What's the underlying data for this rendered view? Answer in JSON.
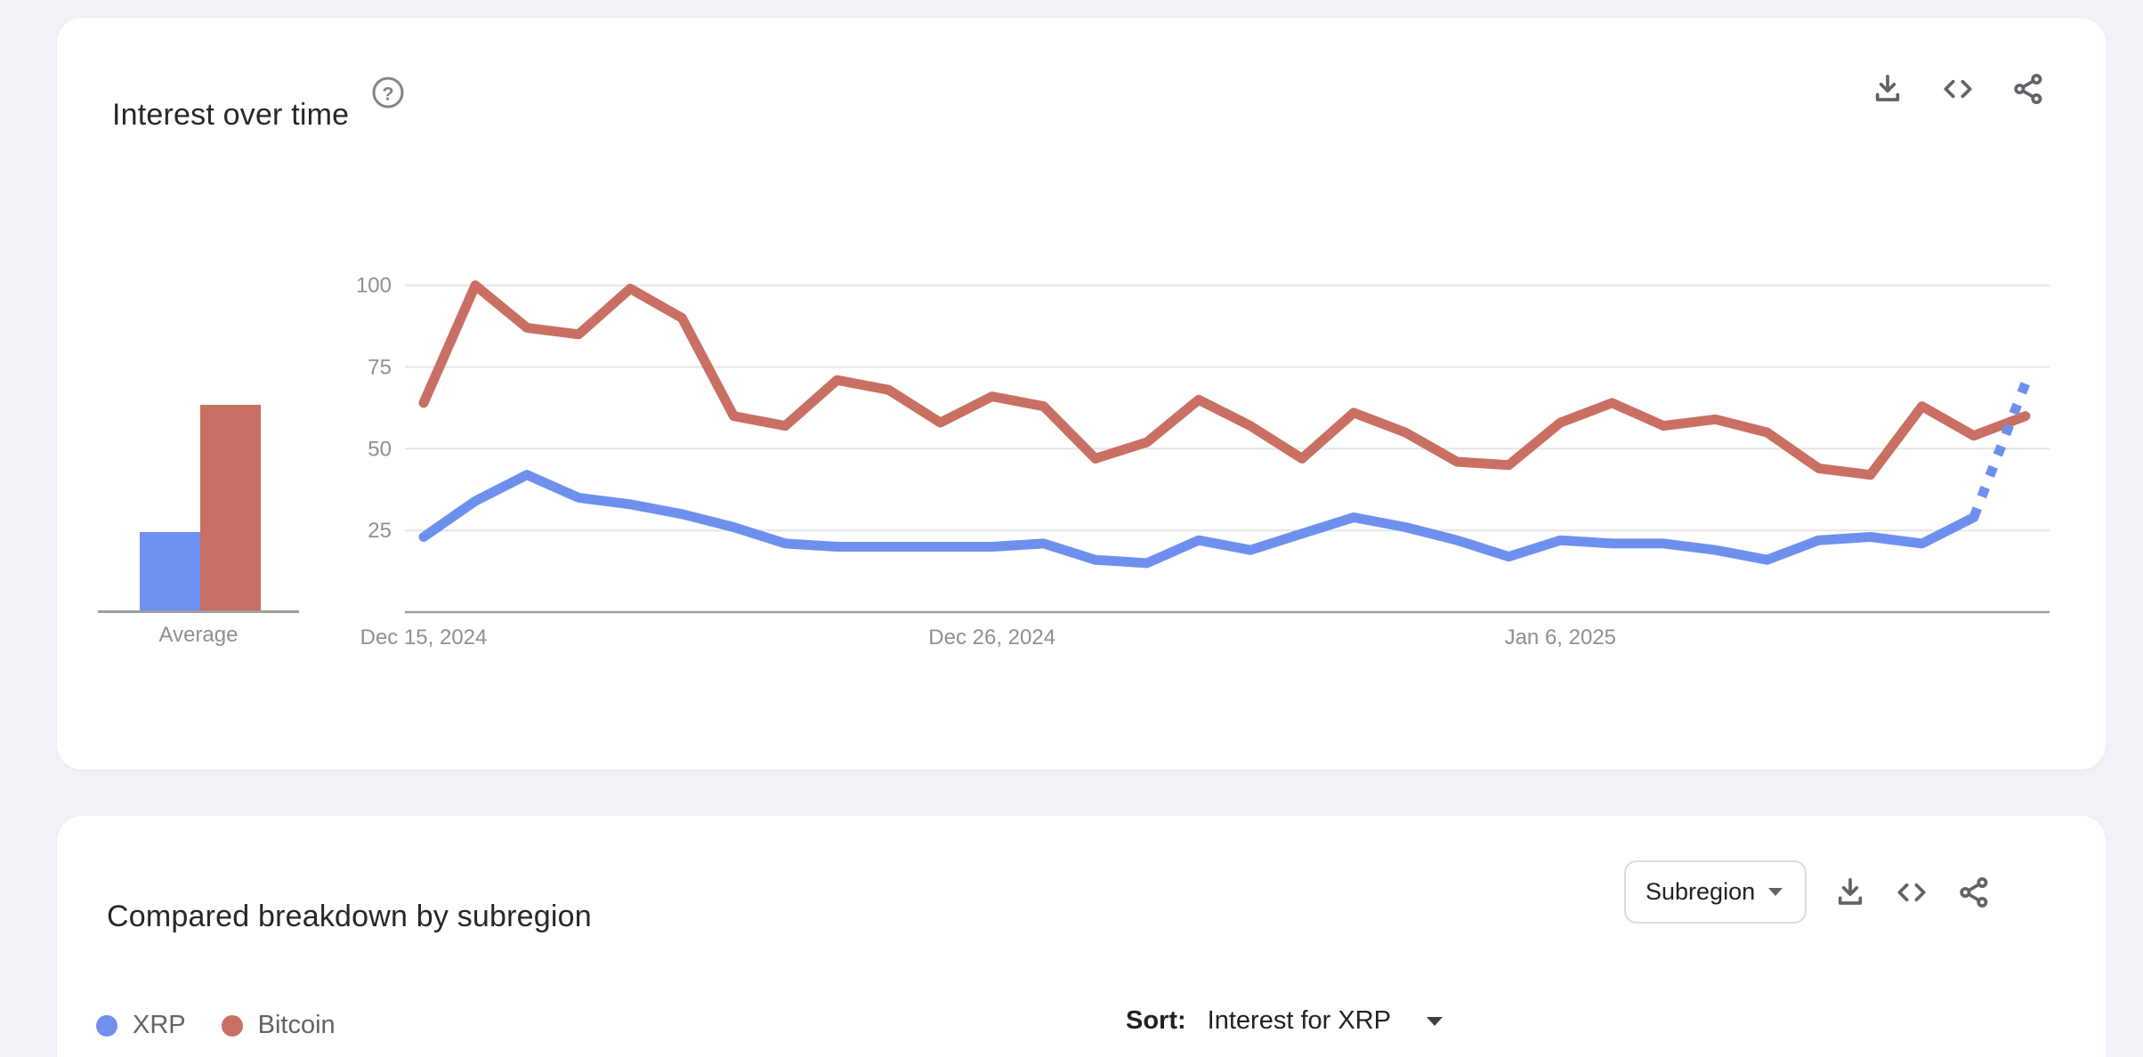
{
  "interest_card": {
    "title": "Interest over time",
    "help_glyph": "?",
    "toolbar": {
      "download": "download",
      "embed": "embed-code",
      "share": "share"
    }
  },
  "breakdown_card": {
    "title": "Compared breakdown by subregion",
    "region_selector": {
      "value": "Subregion"
    },
    "sort": {
      "label": "Sort:",
      "value": "Interest for XRP"
    },
    "toolbar": {
      "download": "download",
      "embed": "embed-code",
      "share": "share"
    }
  },
  "legend": {
    "items": [
      {
        "label": "XRP",
        "color": "#6f8fee"
      },
      {
        "label": "Bitcoin",
        "color": "#c96f63"
      }
    ]
  },
  "colors": {
    "xrp": "#6f8fee",
    "bitcoin": "#c96f63",
    "gridline": "#e6e6e6",
    "axis": "#9aa0a6",
    "muted_text": "#8b9096",
    "page_background": "#f0f2f8"
  },
  "chart_data": {
    "type": "line",
    "title": "Interest over time",
    "ylim": [
      0,
      100
    ],
    "y_ticks": [
      25,
      50,
      75,
      100
    ],
    "x_ticks": [
      {
        "index": 0,
        "label": "Dec 15, 2024"
      },
      {
        "index": 11,
        "label": "Dec 26, 2024"
      },
      {
        "index": 22,
        "label": "Jan 6, 2025"
      }
    ],
    "grid": true,
    "series": [
      {
        "name": "XRP",
        "color": "#6f8fee",
        "dashed_from_index": 30,
        "values": [
          23,
          34,
          42,
          35,
          33,
          30,
          26,
          21,
          20,
          20,
          20,
          20,
          21,
          16,
          15,
          22,
          19,
          24,
          29,
          26,
          22,
          17,
          22,
          21,
          21,
          19,
          16,
          22,
          23,
          21,
          29,
          70
        ]
      },
      {
        "name": "Bitcoin",
        "color": "#c96f63",
        "values": [
          64,
          100,
          87,
          85,
          99,
          90,
          60,
          57,
          71,
          68,
          58,
          66,
          63,
          47,
          52,
          65,
          57,
          47,
          61,
          55,
          46,
          45,
          58,
          64,
          57,
          59,
          55,
          44,
          42,
          63,
          54,
          60
        ]
      }
    ],
    "average_bars": {
      "label": "Average",
      "values": [
        {
          "name": "XRP",
          "value": 24,
          "color": "#6f8fee"
        },
        {
          "name": "Bitcoin",
          "value": 63,
          "color": "#c96f63"
        }
      ]
    }
  }
}
